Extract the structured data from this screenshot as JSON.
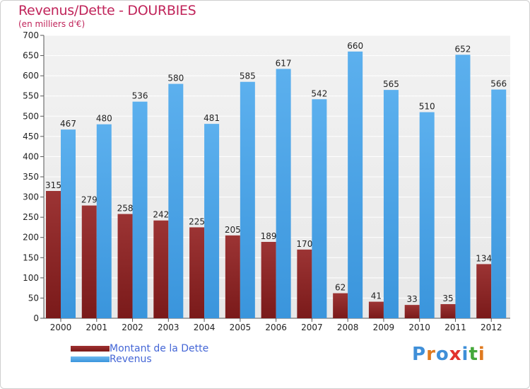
{
  "title": "Revenus/Dette - DOURBIES",
  "subtitle": "(en milliers d'€)",
  "logo": {
    "text": "Proxiti",
    "letters": [
      "P",
      "r",
      "o",
      "x",
      "i",
      "t",
      "i"
    ],
    "colors": [
      "#3f8fd8",
      "#e07a1f",
      "#3f8fd8",
      "#e2312d",
      "#3f8fd8",
      "#45a83a",
      "#e07a1f"
    ]
  },
  "chart_data": {
    "type": "bar",
    "categories": [
      "2000",
      "2001",
      "2002",
      "2003",
      "2004",
      "2005",
      "2006",
      "2007",
      "2008",
      "2009",
      "2010",
      "2011",
      "2012"
    ],
    "series": [
      {
        "name": "Montant de la Dette",
        "color": "#7a1a1a",
        "values": [
          315,
          279,
          258,
          242,
          225,
          205,
          189,
          170,
          62,
          41,
          33,
          35,
          134
        ]
      },
      {
        "name": "Revenus",
        "color": "#3a95dc",
        "values": [
          467,
          480,
          536,
          580,
          481,
          585,
          617,
          542,
          660,
          565,
          510,
          652,
          566
        ]
      }
    ],
    "yticks": [
      "0",
      "50",
      "100",
      "150",
      "200",
      "250",
      "300",
      "350",
      "400",
      "450",
      "500",
      "550",
      "600",
      "650",
      "700"
    ],
    "ylim": [
      0,
      700
    ],
    "grid": true,
    "legend_position": "bottom-left"
  }
}
